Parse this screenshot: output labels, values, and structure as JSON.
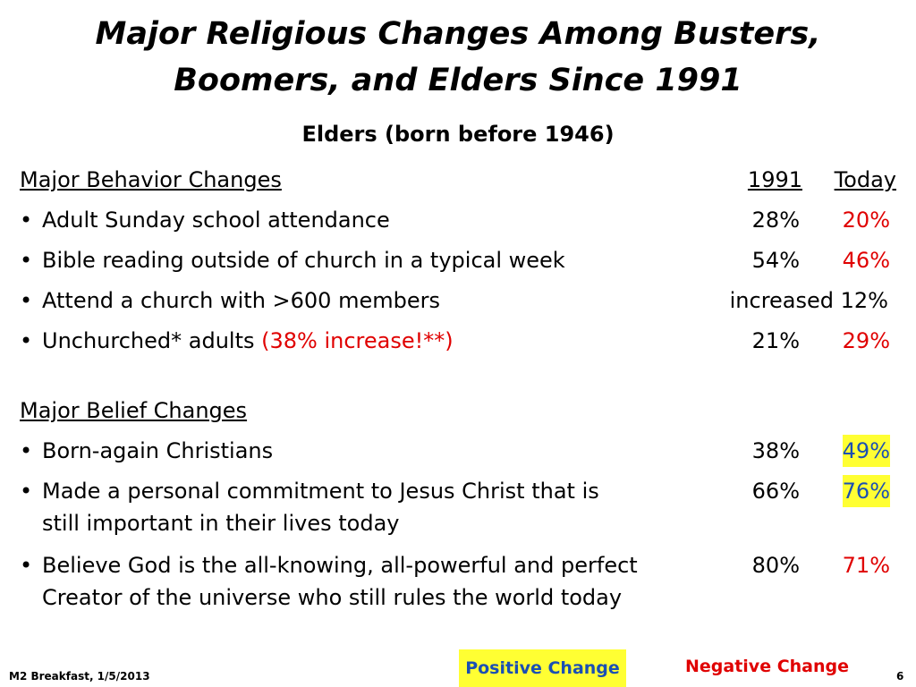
{
  "title": {
    "line1": "Major Religious Changes Among Busters,",
    "line2": "Boomers, and Elders Since 1991"
  },
  "subtitle": "Elders (born before 1946)",
  "behavior": {
    "heading": "Major Behavior Changes",
    "col1": "1991",
    "col2": "Today",
    "items": [
      {
        "label": "Adult Sunday school attendance",
        "v1991": "28%",
        "today": "20%"
      },
      {
        "label": "Bible reading outside of church in a typical week",
        "v1991": "54%",
        "today": "46%"
      },
      {
        "label": "Attend a church with >600 members",
        "combined": "increased 12%"
      },
      {
        "label": "Unchurched* adults ",
        "note": "(38% increase!**)",
        "v1991": "21%",
        "today": "29%"
      }
    ]
  },
  "belief": {
    "heading": "Major Belief Changes",
    "items": [
      {
        "label": "Born-again Christians",
        "v1991": "38%",
        "today": "49%"
      },
      {
        "label": "Made a personal commitment to Jesus Christ that is",
        "label2": "still important in their lives today",
        "v1991": "66%",
        "today": "76%"
      },
      {
        "label": "Believe God is the all-knowing, all-powerful and perfect",
        "label2": "Creator of the universe who still rules the world today",
        "v1991": "80%",
        "today": "71%"
      }
    ]
  },
  "legend": {
    "positive": "Positive Change",
    "negative": "Negative Change"
  },
  "footer": {
    "left": "M2 Breakfast, 1/5/2013",
    "page": "6"
  },
  "bullet": "•",
  "colors": {
    "negative": "#e00000",
    "positive_text": "#1a4fb4",
    "positive_highlight": "#ffff33"
  }
}
